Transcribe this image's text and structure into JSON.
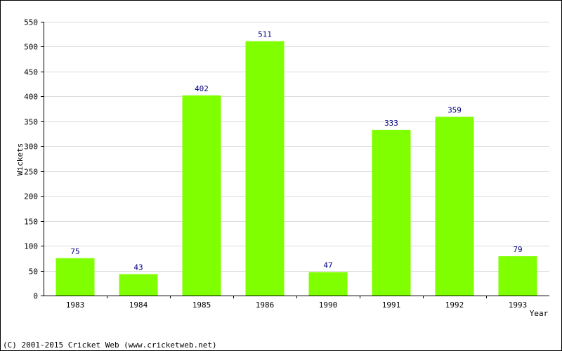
{
  "chart_data": {
    "type": "bar",
    "categories": [
      "1983",
      "1984",
      "1985",
      "1986",
      "1990",
      "1991",
      "1992",
      "1993"
    ],
    "values": [
      75,
      43,
      402,
      511,
      47,
      333,
      359,
      79
    ],
    "xlabel": "Year",
    "ylabel": "Wickets",
    "ylim": [
      0,
      550
    ],
    "yticks": [
      0,
      50,
      100,
      150,
      200,
      250,
      300,
      350,
      400,
      450,
      500,
      550
    ],
    "grid": true,
    "bar_color": "#80ff00",
    "label_color": "#000080"
  },
  "footer": {
    "copyright": "(C) 2001-2015 Cricket Web (www.cricketweb.net)"
  }
}
